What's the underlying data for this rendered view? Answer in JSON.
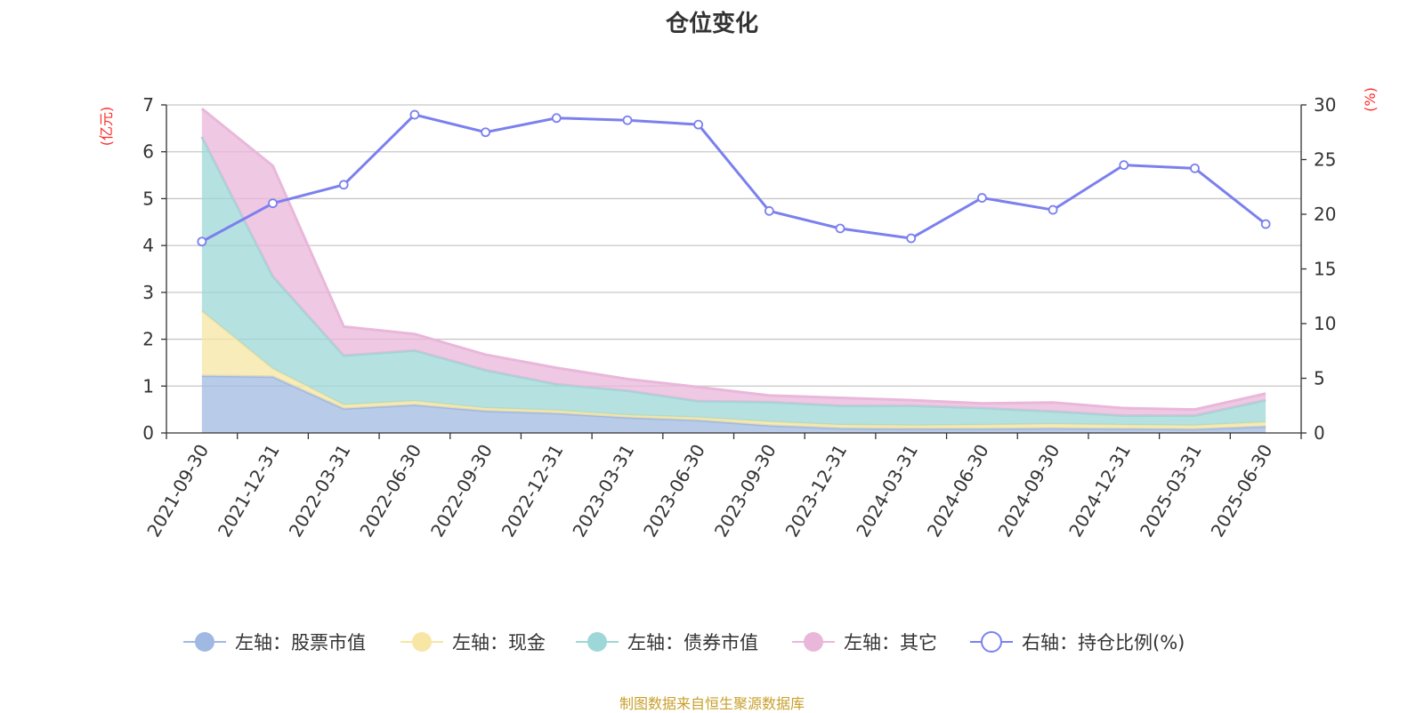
{
  "title": "仓位变化",
  "source_note": "制图数据来自恒生聚源数据库",
  "chart_data": {
    "type": "area",
    "categories": [
      "2021-09-30",
      "2021-12-31",
      "2022-03-31",
      "2022-06-30",
      "2022-09-30",
      "2022-12-31",
      "2023-03-31",
      "2023-06-30",
      "2023-09-30",
      "2023-12-31",
      "2024-03-31",
      "2024-06-30",
      "2024-09-30",
      "2024-12-31",
      "2025-03-31",
      "2025-06-30"
    ],
    "stacked": true,
    "left_axis": {
      "unit": "(亿元)",
      "ylim": [
        0,
        7
      ],
      "ticks": [
        "0",
        "1",
        "2",
        "3",
        "4",
        "5",
        "6",
        "7"
      ]
    },
    "right_axis": {
      "unit": "(%)",
      "ylim": [
        0,
        30
      ],
      "ticks": [
        "0",
        "5",
        "10",
        "15",
        "20",
        "25",
        "30"
      ]
    },
    "grid": true,
    "legend_position": "bottom",
    "series": [
      {
        "name": "左轴：股票市值",
        "axis": "left",
        "type": "area",
        "color": "#a0b9e2",
        "values": [
          1.22,
          1.2,
          0.52,
          0.6,
          0.47,
          0.42,
          0.33,
          0.27,
          0.16,
          0.1,
          0.09,
          0.09,
          0.1,
          0.09,
          0.08,
          0.14
        ]
      },
      {
        "name": "左轴：现金",
        "axis": "left",
        "type": "area",
        "color": "#f7e6a4",
        "values": [
          1.38,
          0.17,
          0.08,
          0.08,
          0.06,
          0.06,
          0.05,
          0.06,
          0.08,
          0.07,
          0.07,
          0.08,
          0.09,
          0.08,
          0.08,
          0.09
        ]
      },
      {
        "name": "左轴：债券市值",
        "axis": "left",
        "type": "area",
        "color": "#9dd7d7",
        "values": [
          3.72,
          1.97,
          1.05,
          1.08,
          0.81,
          0.56,
          0.52,
          0.35,
          0.42,
          0.41,
          0.42,
          0.36,
          0.27,
          0.2,
          0.21,
          0.47
        ]
      },
      {
        "name": "左轴：其它",
        "axis": "left",
        "type": "area",
        "color": "#e9b7da",
        "values": [
          0.6,
          2.36,
          0.62,
          0.35,
          0.33,
          0.35,
          0.25,
          0.3,
          0.14,
          0.17,
          0.12,
          0.1,
          0.19,
          0.16,
          0.13,
          0.14
        ]
      },
      {
        "name": "右轴：持仓比例(%)",
        "axis": "right",
        "type": "line",
        "color": "#7b80ee",
        "values": [
          17.5,
          21.0,
          22.7,
          29.1,
          27.5,
          28.8,
          28.6,
          28.2,
          20.3,
          18.7,
          17.8,
          21.5,
          20.4,
          24.5,
          24.2,
          19.1
        ]
      }
    ]
  }
}
